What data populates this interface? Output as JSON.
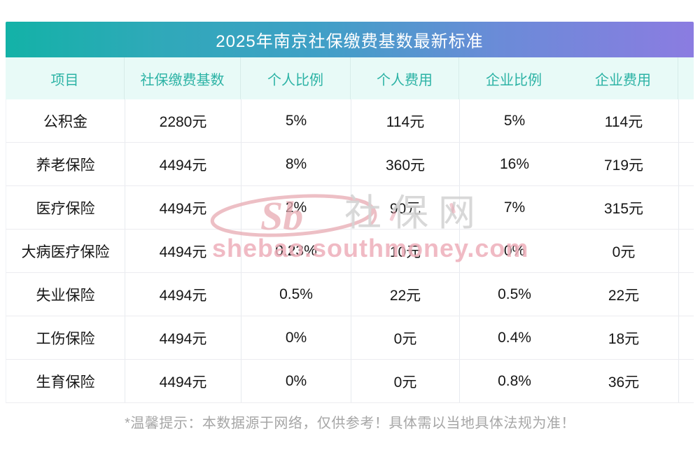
{
  "title": "2025年南京社保缴费基数最新标准",
  "chart_data": {
    "type": "table",
    "title": "2025年南京社保缴费基数最新标准",
    "columns": [
      "项目",
      "社保缴费基数",
      "个人比例",
      "个人费用",
      "企业比例",
      "企业费用"
    ],
    "rows": [
      [
        "公积金",
        "2280元",
        "5%",
        "114元",
        "5%",
        "114元"
      ],
      [
        "养老保险",
        "4494元",
        "8%",
        "360元",
        "16%",
        "719元"
      ],
      [
        "医疗保险",
        "4494元",
        "2%",
        "90元",
        "7%",
        "315元"
      ],
      [
        "大病医疗保险",
        "4494元",
        "0.23%",
        "10元",
        "0%",
        "0元"
      ],
      [
        "失业保险",
        "4494元",
        "0.5%",
        "22元",
        "0.5%",
        "22元"
      ],
      [
        "工伤保险",
        "4494元",
        "0%",
        "0元",
        "0.4%",
        "18元"
      ],
      [
        "生育保险",
        "4494元",
        "0%",
        "0元",
        "0.8%",
        "36元"
      ]
    ],
    "legend": "none",
    "grid": "light vertical and horizontal separators"
  },
  "footer_note": "*温馨提示：本数据源于网络，仅供参考！具体需以当地具体法规为准！",
  "watermark": {
    "logo_text": "Sb",
    "site_name": "社保网",
    "site_url": "shebao.southmoney.com"
  },
  "colors": {
    "title_gradient_start": "#13b2a7",
    "title_gradient_mid": "#3fa0c6",
    "title_gradient_end": "#8b7ce1",
    "title_text": "#ffffff",
    "header_bg": "#e8faf7",
    "header_text": "#2cb3a5",
    "body_text": "#161616",
    "separator": "#e7eaef",
    "footer_text": "#a6a6a6",
    "watermark_pink": "#eeafba",
    "watermark_gray": "#d4d4d4"
  }
}
